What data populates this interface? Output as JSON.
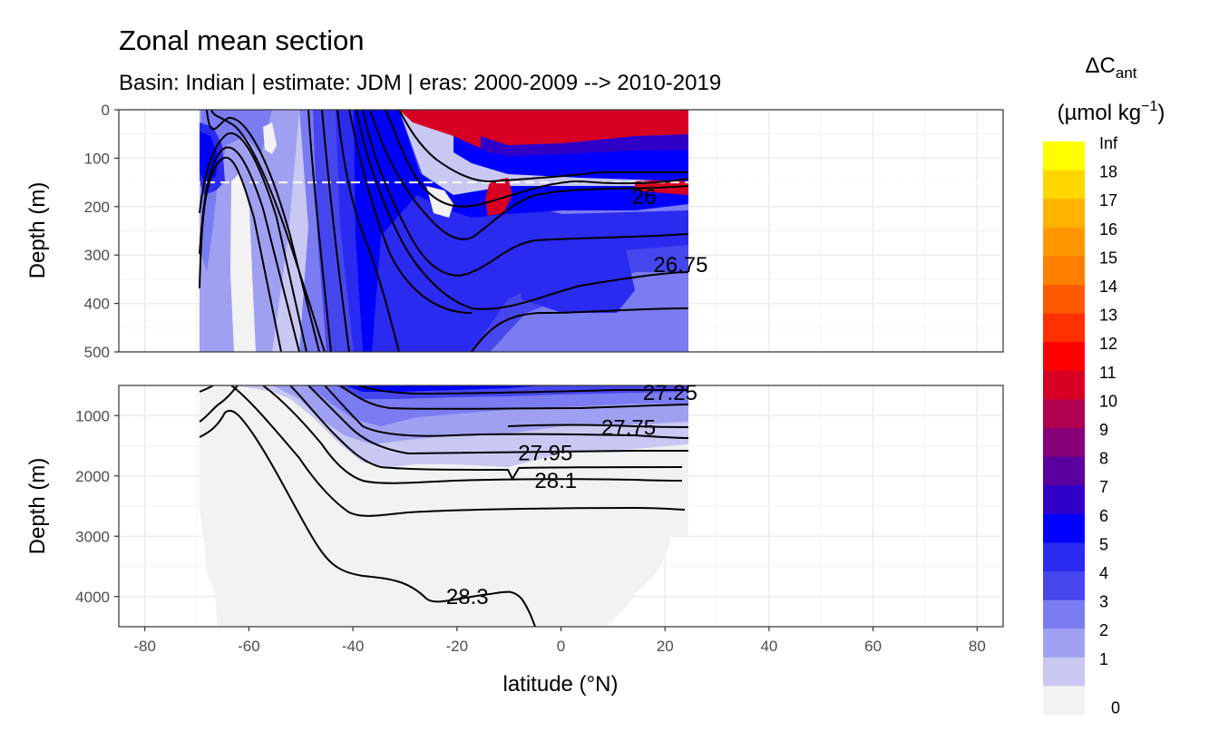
{
  "chart_data": {
    "type": "heatmap",
    "title": "Zonal mean section",
    "subtitle": "Basin: Indian | estimate: JDM  | eras: 2000-2009 --> 2010-2019",
    "xlabel": "latitude (°N)",
    "ylabel": "Depth (m)",
    "xlim": [
      -85,
      85
    ],
    "x_ticks": [
      -80,
      -60,
      -40,
      -20,
      0,
      20,
      40,
      60,
      80
    ],
    "x_tick_labels": [
      "-80",
      "-60",
      "-40",
      "-20",
      "0",
      "20",
      "40",
      "60",
      "80"
    ],
    "grid": true,
    "panels": [
      {
        "name": "upper",
        "ylim": [
          0,
          500
        ],
        "y_ticks": [
          0,
          100,
          200,
          300,
          400,
          500
        ],
        "y_tick_labels": [
          "0",
          "100",
          "200",
          "300",
          "400",
          "500"
        ],
        "reference_depth": 150
      },
      {
        "name": "lower",
        "ylim": [
          500,
          4500
        ],
        "y_ticks": [
          1000,
          2000,
          3000,
          4000
        ],
        "y_tick_labels": [
          "1000",
          "2000",
          "3000",
          "4000"
        ]
      }
    ],
    "data_lat_range": [
      -70,
      24
    ],
    "isopycnal_labels": [
      {
        "label": "26",
        "lat": 16,
        "depth": 180
      },
      {
        "label": "26.75",
        "lat": 23,
        "depth": 320
      },
      {
        "label": "27.25",
        "lat": 21,
        "depth": 620
      },
      {
        "label": "27.75",
        "lat": 13,
        "depth": 1200
      },
      {
        "label": "27.95",
        "lat": -3,
        "depth": 1620
      },
      {
        "label": "28.1",
        "lat": -1,
        "depth": 2080
      },
      {
        "label": "28.3",
        "lat": -18,
        "depth": 4000
      }
    ],
    "legend": {
      "position": "right",
      "title_main": "ΔC",
      "title_sub": "ant",
      "unit_main": "(µmol kg",
      "unit_sup": "−1",
      "unit_close": ")",
      "labels": [
        "Inf",
        "18",
        "17",
        "16",
        "15",
        "14",
        "13",
        "12",
        "11",
        "10",
        "9",
        "8",
        "7",
        "6",
        "5",
        "4",
        "3",
        "2",
        "1",
        "0"
      ],
      "colors": [
        "#FFFF00",
        "#FFD700",
        "#FFB300",
        "#FF9800",
        "#FF7F00",
        "#FF5A00",
        "#FF3000",
        "#FF0000",
        "#D80022",
        "#B00050",
        "#880078",
        "#5A00A0",
        "#3000C8",
        "#0000FF",
        "#2A2AF0",
        "#4646EE",
        "#7B7BF2",
        "#A0A0F2",
        "#C8C8F2",
        "#F2F2F2"
      ]
    }
  }
}
